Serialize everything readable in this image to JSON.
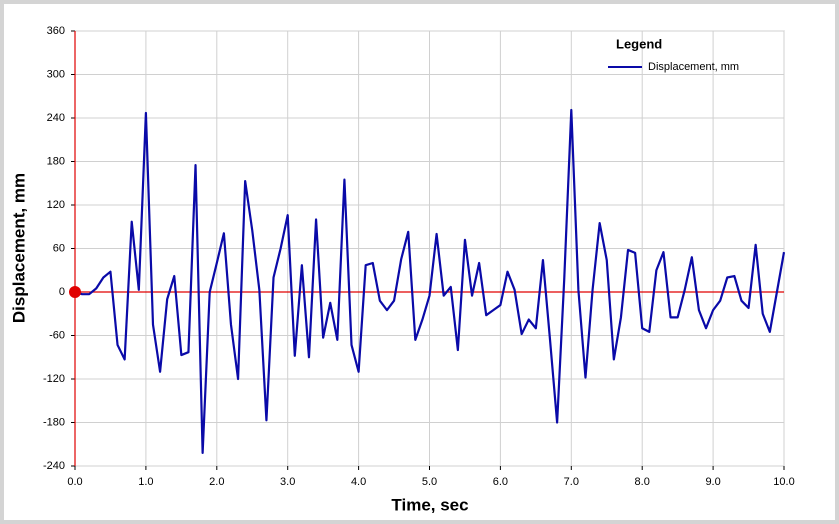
{
  "chart_data": {
    "type": "line",
    "xlabel": "Time,  sec",
    "ylabel": "Displacement,  mm",
    "legend_title": "Legend",
    "legend": "upper right",
    "grid": true,
    "xlim": [
      0,
      10
    ],
    "ylim": [
      -240,
      360
    ],
    "xticks": [
      {
        "value": 0,
        "label": "0.0"
      },
      {
        "value": 1,
        "label": "1.0"
      },
      {
        "value": 2,
        "label": "2.0"
      },
      {
        "value": 3,
        "label": "3.0"
      },
      {
        "value": 4,
        "label": "4.0"
      },
      {
        "value": 5,
        "label": "5.0"
      },
      {
        "value": 6,
        "label": "6.0"
      },
      {
        "value": 7,
        "label": "7.0"
      },
      {
        "value": 8,
        "label": "8.0"
      },
      {
        "value": 9,
        "label": "9.0"
      },
      {
        "value": 10,
        "label": "10.0"
      }
    ],
    "yticks": [
      -240,
      -180,
      -120,
      -60,
      0,
      60,
      120,
      180,
      240,
      300,
      360
    ],
    "x": [
      0,
      0.1,
      0.2,
      0.3,
      0.4,
      0.5,
      0.6,
      0.7,
      0.8,
      0.9,
      1,
      1.1,
      1.2,
      1.3,
      1.4,
      1.5,
      1.6,
      1.7,
      1.8,
      1.9,
      2,
      2.1,
      2.2,
      2.3,
      2.4,
      2.5,
      2.6,
      2.7,
      2.8,
      2.9,
      3,
      3.1,
      3.2,
      3.3,
      3.4,
      3.5,
      3.6,
      3.7,
      3.8,
      3.9,
      4,
      4.1,
      4.2,
      4.3,
      4.4,
      4.5,
      4.6,
      4.7,
      4.8,
      4.9,
      5,
      5.1,
      5.2,
      5.3,
      5.4,
      5.5,
      5.6,
      5.7,
      5.8,
      5.9,
      6,
      6.1,
      6.2,
      6.3,
      6.4,
      6.5,
      6.6,
      6.7,
      6.8,
      6.9,
      7,
      7.1,
      7.2,
      7.3,
      7.4,
      7.5,
      7.6,
      7.7,
      7.8,
      7.9,
      8,
      8.1,
      8.2,
      8.3,
      8.4,
      8.5,
      8.6,
      8.7,
      8.8,
      8.9,
      9,
      9.1,
      9.2,
      9.3,
      9.4,
      9.5,
      9.6,
      9.7,
      9.8,
      9.9,
      10
    ],
    "series": [
      {
        "name": "Displacement, mm",
        "color": "#0a0aa8",
        "values": [
          0,
          -3,
          -3,
          5,
          20,
          28,
          -73,
          -93,
          97,
          3,
          247,
          -45,
          -110,
          -10,
          22,
          -87,
          -83,
          175,
          -222,
          0,
          40,
          81,
          -45,
          -120,
          153,
          85,
          3,
          -177,
          20,
          60,
          106,
          -88,
          37,
          -90,
          100,
          -63,
          -15,
          -66,
          155,
          -73,
          -110,
          37,
          40,
          -12,
          -25,
          -12,
          45,
          83,
          -66,
          -38,
          -5,
          80,
          -5,
          7,
          -80,
          72,
          -5,
          40,
          -32,
          -25,
          -18,
          28,
          3,
          -58,
          -38,
          -50,
          44,
          -66,
          -180,
          17,
          251,
          3,
          -118,
          3,
          95,
          44,
          -93,
          -35,
          58,
          54,
          -50,
          -55,
          30,
          55,
          -35,
          -35,
          3,
          48,
          -25,
          -50,
          -25,
          -12,
          20,
          22,
          -12,
          -22,
          65,
          -30,
          -55,
          0,
          55
        ]
      }
    ]
  }
}
